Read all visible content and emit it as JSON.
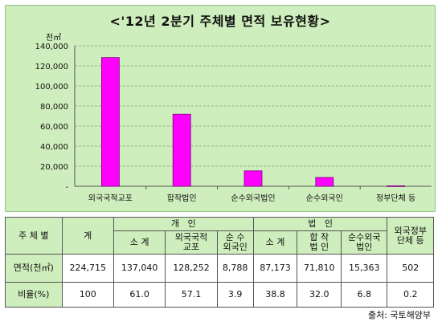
{
  "chart_data": {
    "type": "bar",
    "title": "<'12년 2분기 주체별 면적 보유현황>",
    "unit_label": "천㎡",
    "categories": [
      "외국국적교포",
      "합작법인",
      "순수외국법인",
      "순수외국인",
      "정부단체 등"
    ],
    "values": [
      128252,
      71810,
      15363,
      8788,
      502
    ],
    "ylim": [
      0,
      140000
    ],
    "yticks": [
      "-",
      "20,000",
      "40,000",
      "60,000",
      "80,000",
      "100,000",
      "120,000",
      "140,000"
    ],
    "grid": true,
    "bar_color": "#ff00ff"
  },
  "table": {
    "h_subject": "주 체 별",
    "h_total": "계",
    "h_individual": "개   인",
    "h_corporate": "법   인",
    "h_foreign_gov": "외국정부\n단체 등",
    "sub_individual": [
      "소 계",
      "외국국적\n교포",
      "순 수\n외국인"
    ],
    "sub_corporate": [
      "소 계",
      "합 작\n법 인",
      "순수외국\n법인"
    ],
    "rows": [
      {
        "label": "면적(천㎡)",
        "values": [
          "224,715",
          "137,040",
          "128,252",
          "8,788",
          "87,173",
          "71,810",
          "15,363",
          "502"
        ]
      },
      {
        "label": "비율(%)",
        "values": [
          "100",
          "61.0",
          "57.1",
          "3.9",
          "38.8",
          "32.0",
          "6.8",
          "0.2"
        ]
      }
    ]
  },
  "source": "출처: 국토해양부"
}
